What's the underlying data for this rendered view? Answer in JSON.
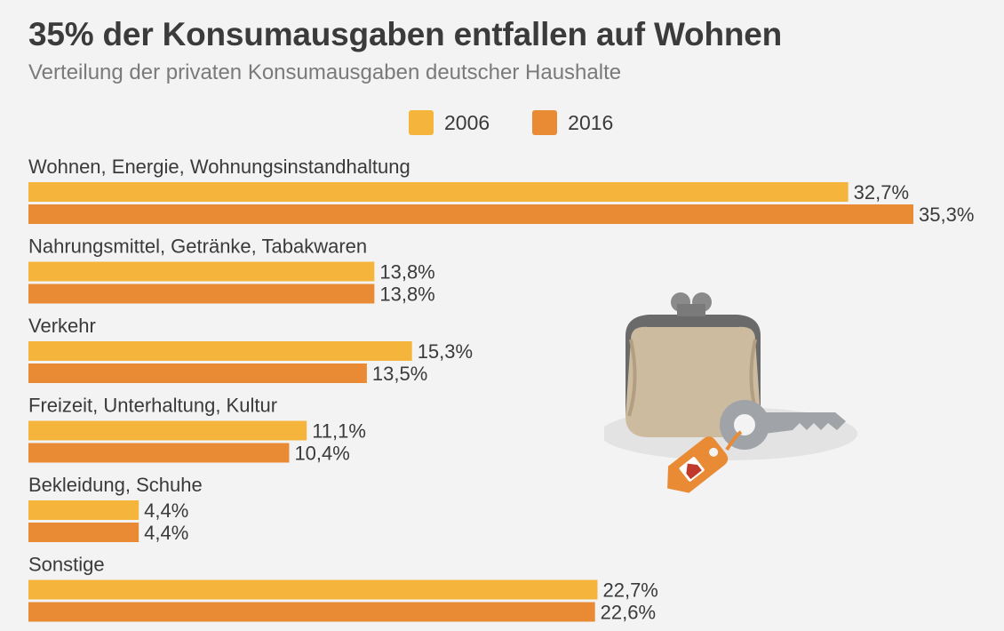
{
  "title": "35% der Konsumausgaben entfallen auf Wohnen",
  "subtitle": "Verteilung der privaten Konsumausgaben deutscher Haushalte",
  "colors": {
    "s2006": "#f5b43c",
    "s2016": "#e98a35",
    "text": "#3a3a3a"
  },
  "chart_data": {
    "type": "bar",
    "orientation": "horizontal",
    "title": "35% der Konsumausgaben entfallen auf Wohnen",
    "subtitle": "Verteilung der privaten Konsumausgaben deutscher Haushalte",
    "legend_position": "top",
    "grid": false,
    "xlim": [
      0,
      35.3
    ],
    "categories": [
      "Wohnen, Energie, Wohnungsinstandhaltung",
      "Nahrungsmittel, Getränke, Tabakwaren",
      "Verkehr",
      "Freizeit, Unterhaltung, Kultur",
      "Bekleidung, Schuhe",
      "Sonstige"
    ],
    "series": [
      {
        "name": "2006",
        "values": [
          32.7,
          13.8,
          15.3,
          11.1,
          4.4,
          22.7
        ],
        "labels": [
          "32,7%",
          "13,8%",
          "15,3%",
          "11,1%",
          "4,4%",
          "22,7%"
        ]
      },
      {
        "name": "2016",
        "values": [
          35.3,
          13.8,
          13.5,
          10.4,
          4.4,
          22.6
        ],
        "labels": [
          "35,3%",
          "13,8%",
          "13,5%",
          "10,4%",
          "4,4%",
          "22,6%"
        ]
      }
    ]
  }
}
